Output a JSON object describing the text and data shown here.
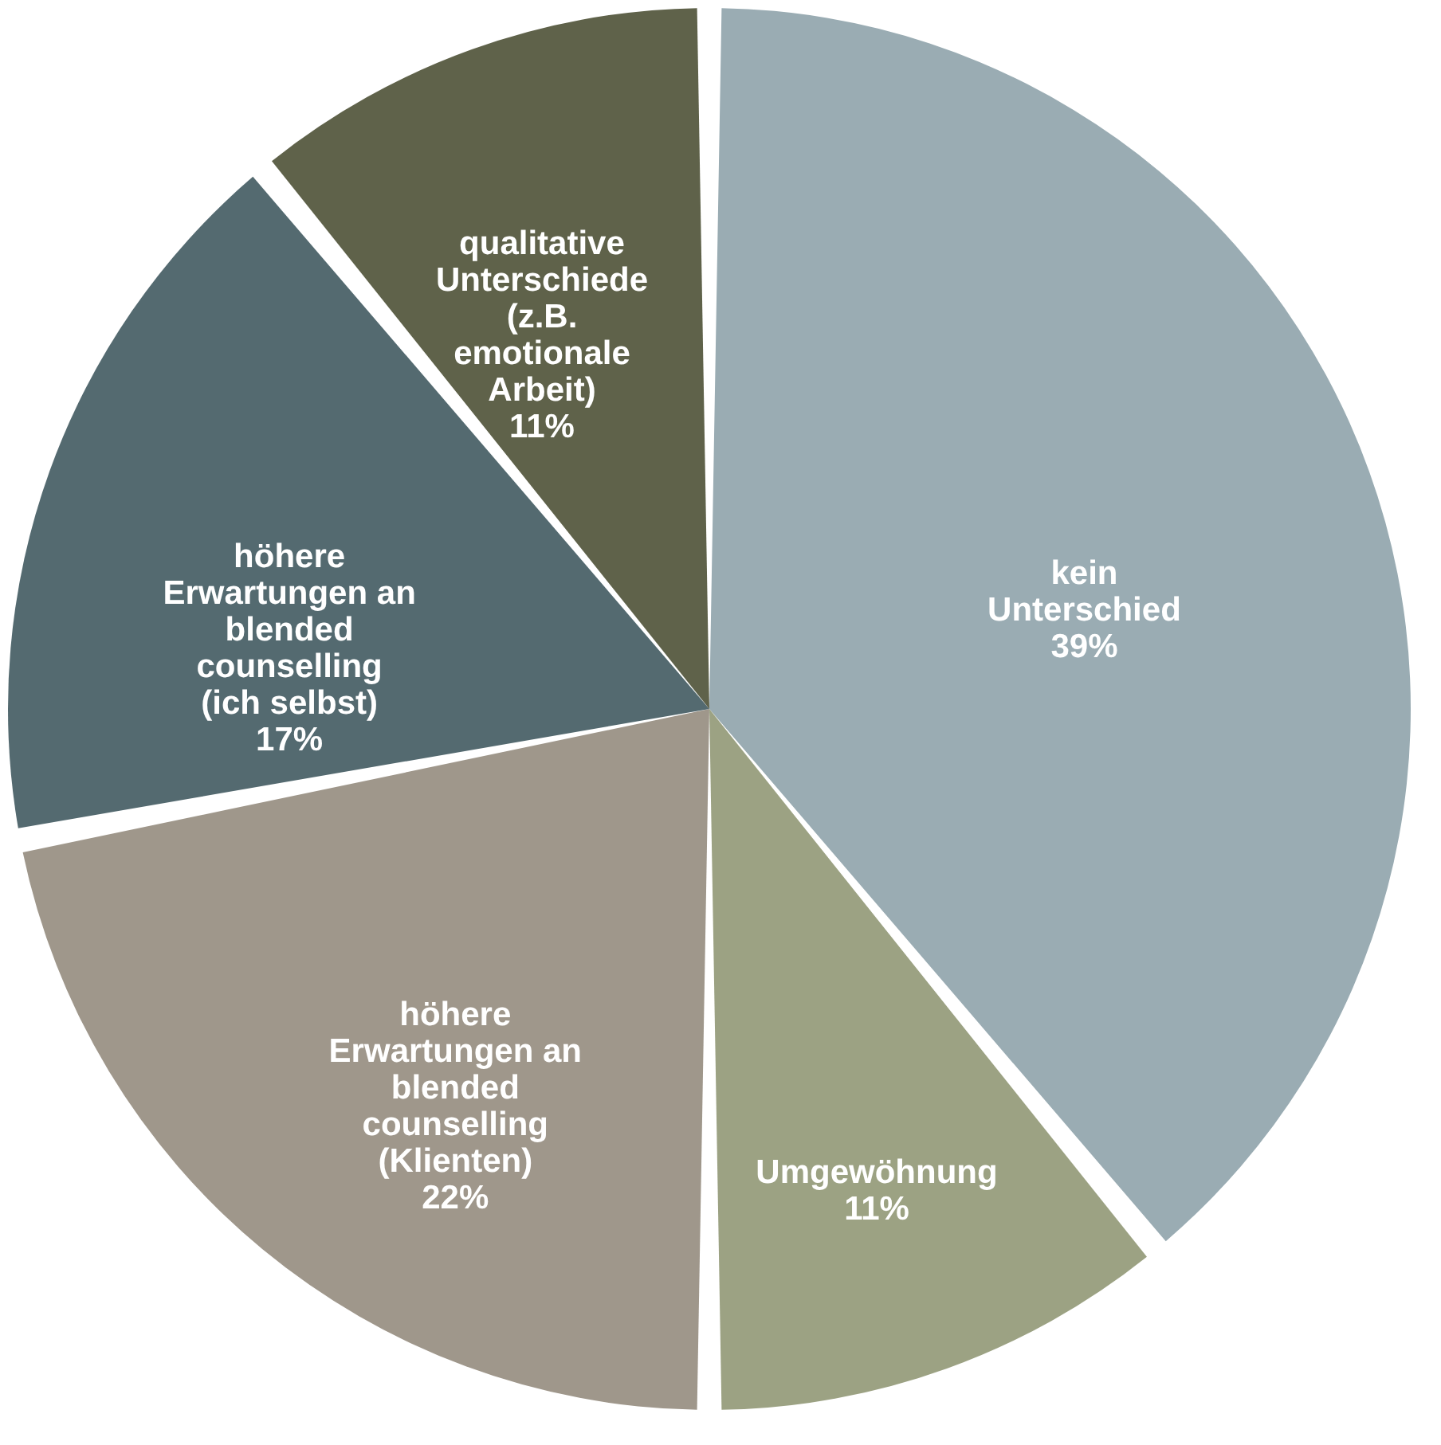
{
  "chart_data": {
    "type": "pie",
    "categories": [
      "kein Unterschied",
      "Umgewöhnung",
      "höhere Erwartungen an blended counselling (Klienten)",
      "höhere Erwartungen an blended counselling (ich selbst)",
      "qualitative Unterschiede (z.B. emotionale Arbeit)"
    ],
    "values": [
      39,
      11,
      22,
      17,
      11
    ],
    "value_labels": [
      "39%",
      "11%",
      "22%",
      "17%",
      "11%"
    ],
    "colors": [
      "#9aacb3",
      "#9ca283",
      "#9f978b",
      "#546a70",
      "#5f624a"
    ],
    "legend": false
  }
}
